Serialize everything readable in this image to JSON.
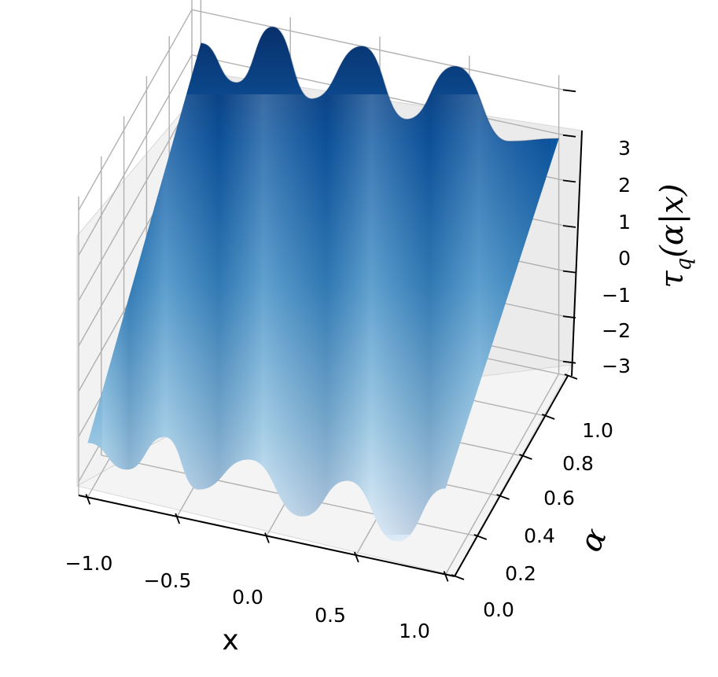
{
  "chart_data": {
    "type": "surface",
    "title": "",
    "xlabel": "x",
    "ylabel": "α",
    "zlabel_main": "τ",
    "zlabel_sub": "q",
    "zlabel_args": "(α|x)",
    "x_ticks": [
      "−1.0",
      "−0.5",
      "0.0",
      "0.5",
      "1.0"
    ],
    "x_tick_values": [
      -1.0,
      -0.5,
      0.0,
      0.5,
      1.0
    ],
    "y_ticks": [
      "0.0",
      "0.2",
      "0.4",
      "0.6",
      "0.8",
      "1.0"
    ],
    "y_tick_values": [
      0.0,
      0.2,
      0.4,
      0.6,
      0.8,
      1.0
    ],
    "z_ticks": [
      "3",
      "2",
      "1",
      "0",
      "−1",
      "−2",
      "−3"
    ],
    "z_tick_values": [
      3,
      2,
      1,
      0,
      -1,
      -2,
      -3
    ],
    "xlim": [
      -1.05,
      1.05
    ],
    "ylim": [
      0.0,
      1.0
    ],
    "zlim": [
      -3.3,
      3.3
    ],
    "colormap": "Blues",
    "grid": true,
    "pane_color": "#f2f2f2",
    "grid_color": "#b0b0b0",
    "surface_points": [
      {
        "x": -1.0,
        "alpha": 0.0,
        "z": -2.1
      },
      {
        "x": -0.78,
        "alpha": 0.0,
        "z": -2.5
      },
      {
        "x": -0.57,
        "alpha": 0.0,
        "z": -1.6
      },
      {
        "x": -0.38,
        "alpha": 0.0,
        "z": -2.6
      },
      {
        "x": -0.1,
        "alpha": 0.0,
        "z": -1.7
      },
      {
        "x": 0.2,
        "alpha": 0.0,
        "z": -2.7
      },
      {
        "x": 0.45,
        "alpha": 0.0,
        "z": -1.7
      },
      {
        "x": 0.73,
        "alpha": 0.0,
        "z": -2.8
      },
      {
        "x": 1.0,
        "alpha": 0.0,
        "z": -1.4
      },
      {
        "x": -1.0,
        "alpha": 1.0,
        "z": 2.3
      },
      {
        "x": -0.8,
        "alpha": 1.0,
        "z": 1.6
      },
      {
        "x": -0.6,
        "alpha": 1.0,
        "z": 3.0
      },
      {
        "x": -0.38,
        "alpha": 1.0,
        "z": 1.6
      },
      {
        "x": -0.1,
        "alpha": 1.0,
        "z": 3.0
      },
      {
        "x": 0.15,
        "alpha": 1.0,
        "z": 1.6
      },
      {
        "x": 0.42,
        "alpha": 1.0,
        "z": 3.0
      },
      {
        "x": 0.72,
        "alpha": 1.0,
        "z": 1.6
      },
      {
        "x": 1.0,
        "alpha": 1.0,
        "z": 1.9
      }
    ]
  }
}
